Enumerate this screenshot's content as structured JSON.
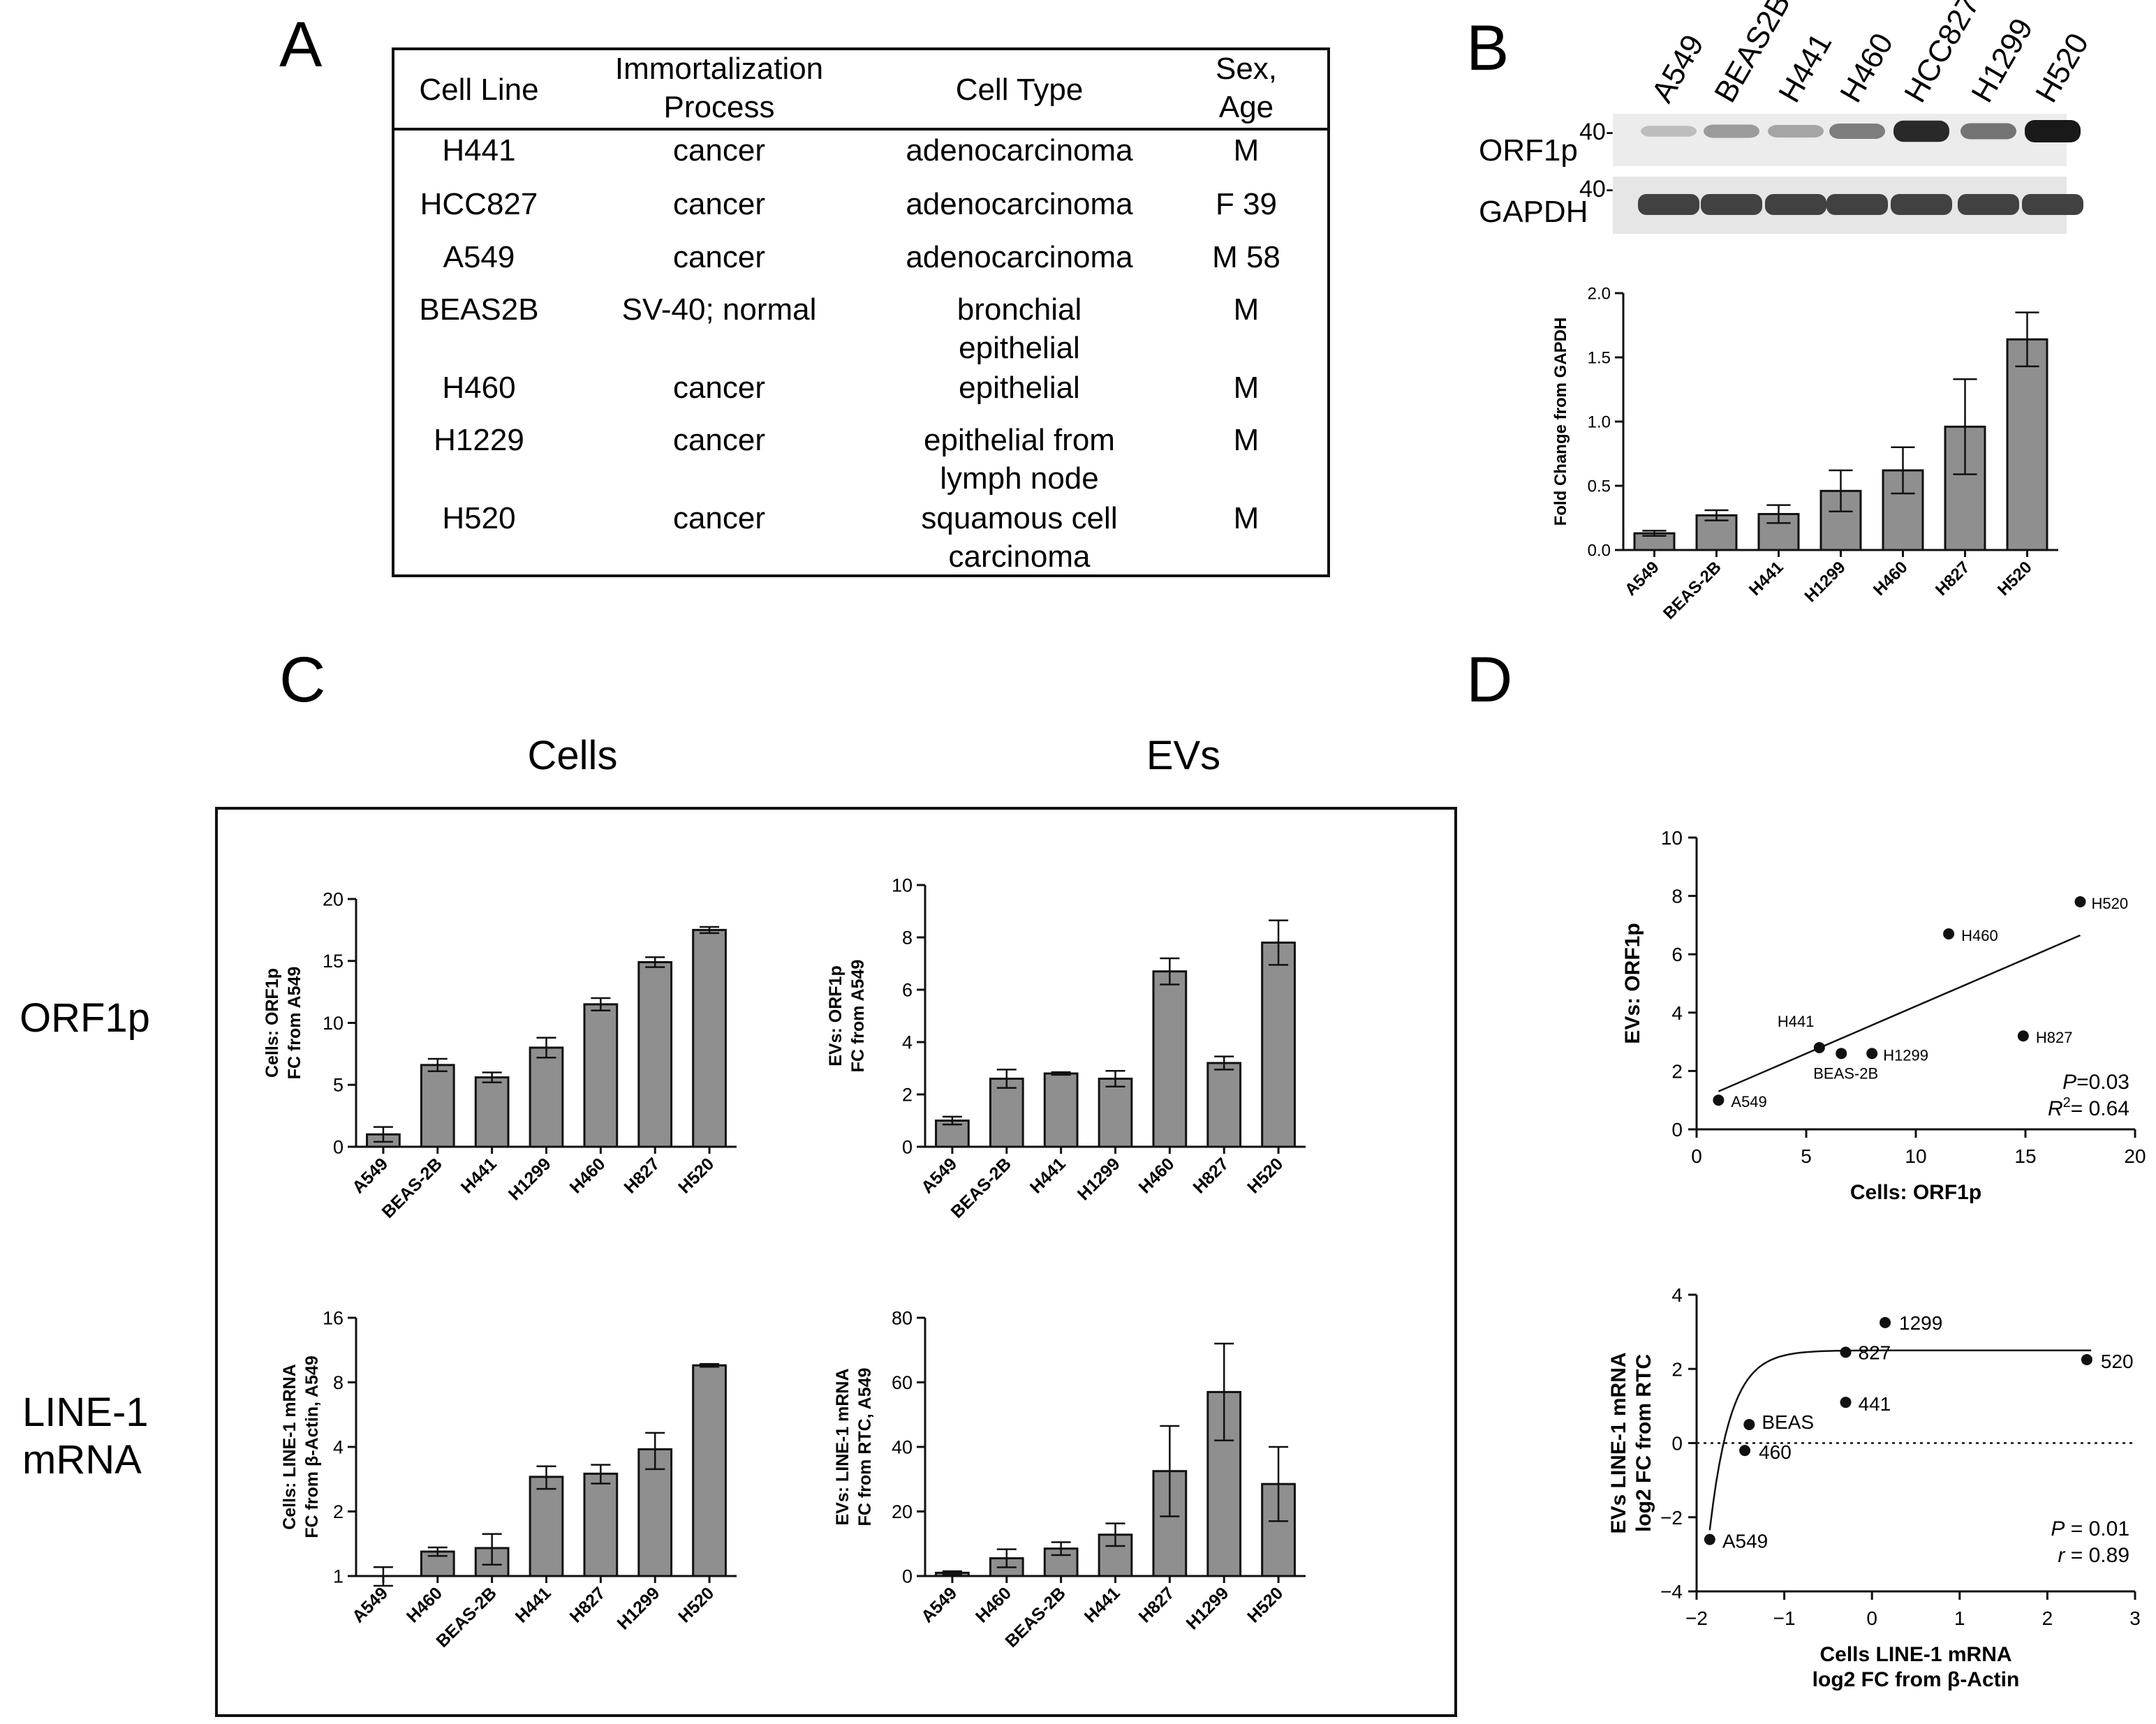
{
  "panels": {
    "a": "A",
    "b": "B",
    "c": "C",
    "d": "D"
  },
  "table": {
    "headers": [
      [
        "Cell Line"
      ],
      [
        "Immortalization",
        "Process"
      ],
      [
        "Cell Type"
      ],
      [
        "Sex,",
        "Age"
      ]
    ],
    "rows": [
      [
        [
          "H441"
        ],
        [
          "cancer"
        ],
        [
          "adenocarcinoma"
        ],
        [
          "M"
        ]
      ],
      [
        [
          "HCC827"
        ],
        [
          "cancer"
        ],
        [
          "adenocarcinoma"
        ],
        [
          "F 39"
        ]
      ],
      [
        [
          "A549"
        ],
        [
          "cancer"
        ],
        [
          "adenocarcinoma"
        ],
        [
          "M 58"
        ]
      ],
      [
        [
          "BEAS2B"
        ],
        [
          "SV-40; normal"
        ],
        [
          "bronchial",
          "epithelial"
        ],
        [
          "M"
        ]
      ],
      [
        [
          "H460"
        ],
        [
          "cancer"
        ],
        [
          "epithelial"
        ],
        [
          "M"
        ]
      ],
      [
        [
          "H1229"
        ],
        [
          "cancer"
        ],
        [
          "epithelial from",
          "lymph node"
        ],
        [
          "M"
        ]
      ],
      [
        [
          "H520"
        ],
        [
          "cancer"
        ],
        [
          "squamous cell",
          "carcinoma"
        ],
        [
          "M"
        ]
      ]
    ]
  },
  "blot": {
    "lanes": [
      "A549",
      "BEAS2B",
      "H441",
      "H460",
      "HCC827",
      "H1299",
      "H520"
    ],
    "orf1p_label": "ORF1p",
    "gapdh_label": "GAPDH",
    "marker_orf1p": "40-",
    "marker_gapdh": "40-",
    "orf1p_intensity": [
      0.18,
      0.35,
      0.3,
      0.5,
      0.92,
      0.55,
      1.0
    ],
    "gapdh_intensity": [
      0.8,
      0.8,
      0.8,
      0.8,
      0.8,
      0.8,
      0.8
    ]
  },
  "section_c": {
    "col_cells": "Cells",
    "col_evs": "EVs",
    "row_orf1p": "ORF1p",
    "row_line1": [
      "LINE-1",
      "mRNA"
    ]
  },
  "chart_data": [
    {
      "id": "b-quant",
      "type": "bar",
      "title": "",
      "categories": [
        "A549",
        "BEAS-2B",
        "H441",
        "H1299",
        "H460",
        "H827",
        "H520"
      ],
      "values": [
        0.13,
        0.27,
        0.28,
        0.46,
        0.62,
        0.96,
        1.64
      ],
      "errors": [
        0.02,
        0.04,
        0.07,
        0.16,
        0.18,
        0.37,
        0.21
      ],
      "ylabel": [
        "Fold Change from GAPDH"
      ],
      "ylim": [
        0,
        2
      ],
      "yticks": [
        0,
        0.5,
        1,
        1.5,
        2
      ],
      "ytick_labels": [
        "0.0",
        "0.5",
        "1.0",
        "1.5",
        "2.0"
      ],
      "scale": "linear"
    },
    {
      "id": "c-cells-orf1p",
      "type": "bar",
      "categories": [
        "A549",
        "BEAS-2B",
        "H441",
        "H1299",
        "H460",
        "H827",
        "H520"
      ],
      "values": [
        1.0,
        6.6,
        5.6,
        8.0,
        11.5,
        14.9,
        17.5
      ],
      "errors": [
        0.6,
        0.5,
        0.4,
        0.8,
        0.5,
        0.4,
        0.25
      ],
      "ylabel": [
        "Cells: ORF1p",
        "FC from A549"
      ],
      "ylim": [
        0,
        20
      ],
      "yticks": [
        0,
        5,
        10,
        15,
        20
      ],
      "ytick_labels": [
        "0",
        "5",
        "10",
        "15",
        "20"
      ],
      "scale": "linear"
    },
    {
      "id": "c-evs-orf1p",
      "type": "bar",
      "categories": [
        "A549",
        "BEAS-2B",
        "H441",
        "H1299",
        "H460",
        "H827",
        "H520"
      ],
      "values": [
        1.0,
        2.6,
        2.8,
        2.6,
        6.7,
        3.2,
        7.8
      ],
      "errors": [
        0.15,
        0.35,
        0.05,
        0.3,
        0.5,
        0.25,
        0.85
      ],
      "ylabel": [
        "EVs: ORF1p",
        "FC from A549"
      ],
      "ylim": [
        0,
        10
      ],
      "yticks": [
        0,
        2,
        4,
        6,
        8,
        10
      ],
      "ytick_labels": [
        "0",
        "2",
        "4",
        "6",
        "8",
        "10"
      ],
      "scale": "linear"
    },
    {
      "id": "c-cells-line1",
      "type": "bar",
      "categories": [
        "A549",
        "H460",
        "BEAS-2B",
        "H441",
        "H827",
        "H1299",
        "H520"
      ],
      "values": [
        1.0,
        1.3,
        1.35,
        2.9,
        3.0,
        3.9,
        9.6
      ],
      "errors": [
        0.1,
        0.06,
        0.22,
        0.35,
        0.3,
        0.75,
        0.15
      ],
      "ylabel": [
        "Cells: LINE-1 mRNA",
        "FC from β-Actin, A549"
      ],
      "ylim": [
        1,
        16
      ],
      "yticks": [
        1,
        2,
        4,
        8,
        16
      ],
      "ytick_labels": [
        "1",
        "2",
        "4",
        "8",
        "16"
      ],
      "scale": "log2"
    },
    {
      "id": "c-evs-line1",
      "type": "bar",
      "categories": [
        "A549",
        "H460",
        "BEAS-2B",
        "H441",
        "H827",
        "H1299",
        "H520"
      ],
      "values": [
        1.0,
        5.5,
        8.5,
        12.8,
        32.5,
        57.0,
        28.5
      ],
      "errors": [
        0.5,
        2.8,
        2.0,
        3.5,
        14.0,
        15.0,
        11.5
      ],
      "ylabel": [
        "EVs: LINE-1 mRNA",
        "FC from RTC, A549"
      ],
      "ylim": [
        0,
        80
      ],
      "yticks": [
        0,
        20,
        40,
        60,
        80
      ],
      "ytick_labels": [
        "0",
        "20",
        "40",
        "60",
        "80"
      ],
      "scale": "linear"
    },
    {
      "id": "d-orf1p-scatter",
      "type": "scatter",
      "points": [
        {
          "label": "A549",
          "x": 1.0,
          "y": 1.0
        },
        {
          "label": "BEAS-2B",
          "x": 6.6,
          "y": 2.6
        },
        {
          "label": "H441",
          "x": 5.6,
          "y": 2.8
        },
        {
          "label": "H1299",
          "x": 8.0,
          "y": 2.6
        },
        {
          "label": "H460",
          "x": 11.5,
          "y": 6.7
        },
        {
          "label": "H827",
          "x": 14.9,
          "y": 3.2
        },
        {
          "label": "H520",
          "x": 17.5,
          "y": 7.8
        }
      ],
      "fit": {
        "type": "linear",
        "x0": 1.0,
        "y0": 1.3,
        "x1": 17.5,
        "y1": 6.65
      },
      "xlabel": [
        "Cells: ORF1p"
      ],
      "ylabel": [
        "EVs: ORF1p"
      ],
      "xlim": [
        0,
        20
      ],
      "ylim": [
        0,
        10
      ],
      "xticks": [
        0,
        5,
        10,
        15,
        20
      ],
      "yticks": [
        0,
        2,
        4,
        6,
        8,
        10
      ],
      "stats": [
        {
          "key": "P",
          "value": "=0.03"
        },
        {
          "key": "R",
          "sup": "2",
          "value": "= 0.64"
        }
      ]
    },
    {
      "id": "d-line1-scatter",
      "type": "scatter",
      "points": [
        {
          "label": "A549",
          "x": -1.85,
          "y": -2.6
        },
        {
          "label": "BEAS",
          "x": -1.4,
          "y": 0.5
        },
        {
          "label": "460",
          "x": -1.45,
          "y": -0.2
        },
        {
          "label": "827",
          "x": -0.3,
          "y": 2.45
        },
        {
          "label": "441",
          "x": -0.3,
          "y": 1.1
        },
        {
          "label": "1299",
          "x": 0.15,
          "y": 3.25
        },
        {
          "label": "520",
          "x": 2.45,
          "y": 2.25
        }
      ],
      "fit": {
        "type": "exponential_plateau",
        "plateau": 2.5,
        "a": -4.85,
        "x_start": -1.85,
        "x_end": 2.5,
        "x_ref": -1.85,
        "k": 4.2
      },
      "zero_line": 0,
      "xlabel": [
        "Cells LINE-1 mRNA",
        "log2 FC from β-Actin"
      ],
      "ylabel": [
        "EVs LINE-1 mRNA",
        "log2 FC from RTC"
      ],
      "xlim": [
        -2,
        3
      ],
      "ylim": [
        -4,
        4
      ],
      "xticks": [
        -2,
        -1,
        0,
        1,
        2,
        3
      ],
      "yticks": [
        -4,
        -2,
        0,
        2,
        4
      ],
      "xtick_labels": [
        "−2",
        "−1",
        "0",
        "1",
        "2",
        "3"
      ],
      "ytick_labels": [
        "−4",
        "−2",
        "0",
        "2",
        "4"
      ],
      "stats": [
        {
          "key": "P",
          "value": " = 0.01"
        },
        {
          "key": "r",
          "value": " = 0.89"
        }
      ]
    }
  ]
}
